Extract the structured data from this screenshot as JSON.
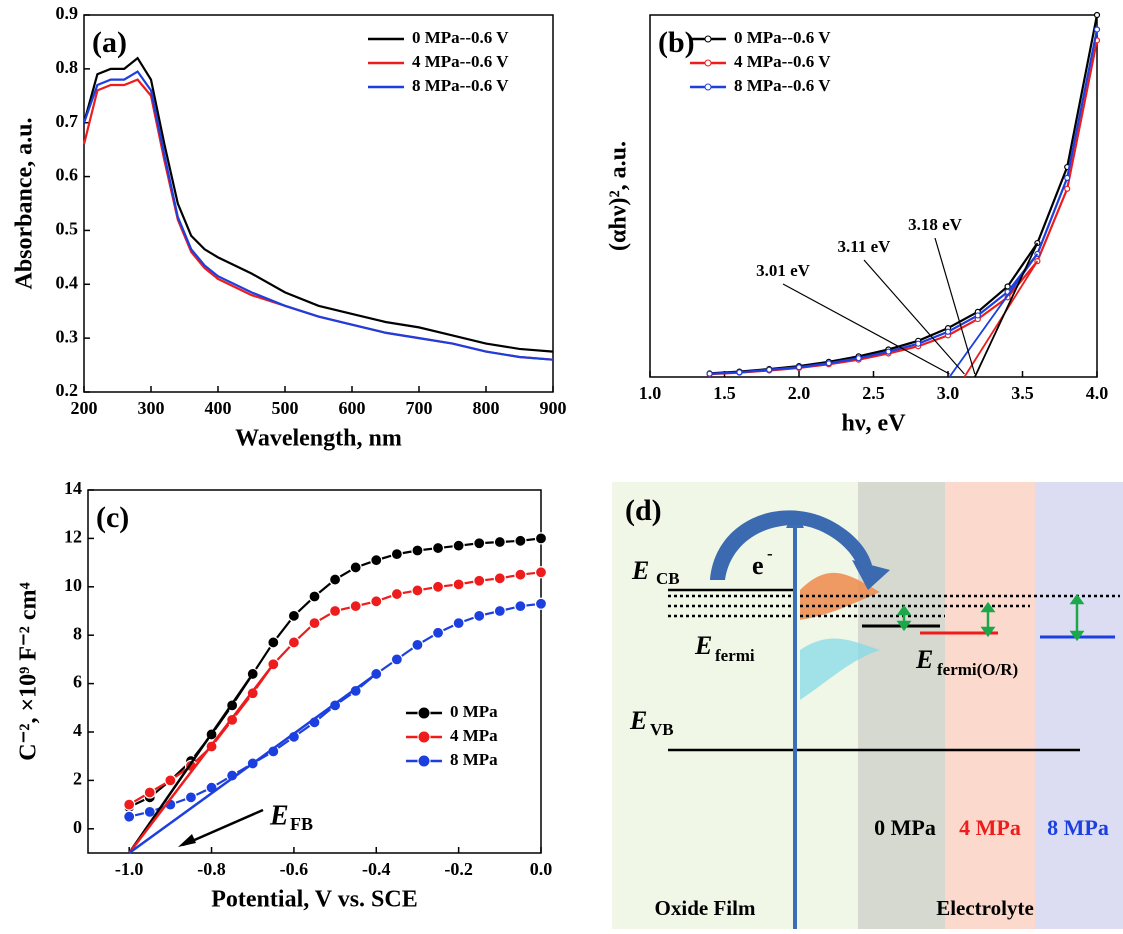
{
  "chart_data": [
    {
      "type": "line",
      "title": "(a)",
      "x_label": "Wavelength, nm",
      "y_label": "Absorbance, a.u.",
      "x": [
        200,
        220,
        240,
        260,
        280,
        300,
        320,
        340,
        360,
        380,
        400,
        450,
        500,
        550,
        600,
        650,
        700,
        750,
        800,
        850,
        900
      ],
      "series": [
        {
          "name": "0 MPa--0.6 V",
          "color": "#000000",
          "values": [
            0.7,
            0.79,
            0.8,
            0.8,
            0.82,
            0.78,
            0.66,
            0.55,
            0.49,
            0.465,
            0.45,
            0.42,
            0.385,
            0.36,
            0.345,
            0.33,
            0.32,
            0.305,
            0.29,
            0.28,
            0.275
          ]
        },
        {
          "name": "4 MPa--0.6 V",
          "color": "#ee1c1c",
          "values": [
            0.66,
            0.76,
            0.77,
            0.77,
            0.78,
            0.75,
            0.63,
            0.52,
            0.46,
            0.43,
            0.41,
            0.38,
            0.36,
            0.34,
            0.325,
            0.31,
            0.3,
            0.29,
            0.275,
            0.265,
            0.26
          ]
        },
        {
          "name": "8 MPa--0.6 V",
          "color": "#1c3fe0",
          "values": [
            0.7,
            0.77,
            0.78,
            0.78,
            0.795,
            0.76,
            0.64,
            0.525,
            0.465,
            0.435,
            0.415,
            0.385,
            0.36,
            0.34,
            0.325,
            0.31,
            0.3,
            0.29,
            0.275,
            0.265,
            0.26
          ]
        }
      ],
      "xlim": [
        200,
        900
      ],
      "xticks": [
        200,
        300,
        400,
        500,
        600,
        700,
        800,
        900
      ],
      "ylim": [
        0.2,
        0.9
      ],
      "yticks": [
        0.2,
        0.3,
        0.4,
        0.5,
        0.6,
        0.7,
        0.8,
        0.9
      ],
      "legend": "upper right",
      "markers": false
    },
    {
      "type": "line",
      "title": "(b)",
      "x_label": "hν, eV",
      "y_label": "(αhν)², a.u.",
      "x": [
        1.4,
        1.6,
        1.8,
        2.0,
        2.2,
        2.4,
        2.6,
        2.8,
        3.0,
        3.2,
        3.4,
        3.6,
        3.8,
        4.0
      ],
      "series": [
        {
          "name": "0 MPa--0.6 V",
          "color": "#000000",
          "values": [
            0.01,
            0.015,
            0.022,
            0.03,
            0.042,
            0.057,
            0.076,
            0.1,
            0.135,
            0.18,
            0.25,
            0.37,
            0.58,
            1.0
          ]
        },
        {
          "name": "4 MPa--0.6 V",
          "color": "#ee1c1c",
          "values": [
            0.008,
            0.012,
            0.018,
            0.025,
            0.035,
            0.048,
            0.065,
            0.085,
            0.115,
            0.16,
            0.22,
            0.32,
            0.52,
            0.93
          ]
        },
        {
          "name": "8 MPa--0.6 V",
          "color": "#1c3fe0",
          "values": [
            0.009,
            0.013,
            0.02,
            0.027,
            0.038,
            0.052,
            0.07,
            0.092,
            0.125,
            0.17,
            0.235,
            0.34,
            0.55,
            0.96
          ]
        }
      ],
      "annotations": [
        {
          "text": "3.01 eV",
          "x": 3.01
        },
        {
          "text": "3.11 eV",
          "x": 3.11
        },
        {
          "text": "3.18 eV",
          "x": 3.18
        }
      ],
      "xlim": [
        1.0,
        4.0
      ],
      "xticks": [
        {
          "value": 1,
          "label": "1.0"
        },
        1.5,
        {
          "value": 2,
          "label": "2.0"
        },
        2.5,
        {
          "value": 3,
          "label": "3.0"
        },
        3.5,
        {
          "value": 4,
          "label": "4.0"
        }
      ],
      "ylim": [
        0,
        1
      ],
      "legend": "upper left",
      "markers": true
    },
    {
      "type": "line",
      "title": "(c)",
      "x_label": "Potential, V vs. SCE",
      "y_label": "C⁻², ×10⁹ F⁻² cm⁴",
      "x": [
        -1.0,
        -0.95,
        -0.9,
        -0.85,
        -0.8,
        -0.75,
        -0.7,
        -0.65,
        -0.6,
        -0.55,
        -0.5,
        -0.45,
        -0.4,
        -0.35,
        -0.3,
        -0.25,
        -0.2,
        -0.15,
        -0.1,
        -0.05,
        0.0
      ],
      "series": [
        {
          "name": "0 MPa",
          "color": "#000000",
          "values": [
            0.9,
            1.3,
            2.0,
            2.8,
            3.9,
            5.1,
            6.4,
            7.7,
            8.8,
            9.6,
            10.3,
            10.8,
            11.1,
            11.35,
            11.5,
            11.6,
            11.7,
            11.8,
            11.85,
            11.9,
            12.0
          ]
        },
        {
          "name": "4 MPa",
          "color": "#ee1c1c",
          "values": [
            1.0,
            1.5,
            2.0,
            2.6,
            3.4,
            4.5,
            5.6,
            6.8,
            7.7,
            8.5,
            9.0,
            9.2,
            9.4,
            9.7,
            9.85,
            10.0,
            10.1,
            10.25,
            10.35,
            10.5,
            10.6
          ]
        },
        {
          "name": "8 MPa",
          "color": "#1c3fe0",
          "values": [
            0.5,
            0.7,
            1.0,
            1.3,
            1.7,
            2.2,
            2.7,
            3.2,
            3.8,
            4.4,
            5.1,
            5.7,
            6.4,
            7.0,
            7.6,
            8.1,
            8.5,
            8.8,
            9.0,
            9.2,
            9.3
          ]
        }
      ],
      "annotation": {
        "text": "E",
        "sub": "FB"
      },
      "xlim": [
        -1.1,
        0.0
      ],
      "xticks": [
        {
          "value": -1,
          "label": "-1.0"
        },
        -0.8,
        -0.6,
        -0.4,
        -0.2,
        {
          "value": 0,
          "label": "0.0"
        }
      ],
      "ylim": [
        -1,
        14
      ],
      "yticks": [
        0,
        2,
        4,
        6,
        8,
        10,
        12,
        14
      ],
      "legend": "lower right",
      "markers": true
    }
  ],
  "diagram": {
    "title": "(d)",
    "cb": {
      "main": "E",
      "sub": "CB"
    },
    "electron": {
      "main": "e",
      "sup": "-"
    },
    "fermi": {
      "main": "E",
      "sub": "fermi"
    },
    "fermi_or": {
      "main": "E",
      "sub": "fermi(O/R)"
    },
    "vb": {
      "main": "E",
      "sub": "VB"
    },
    "pressures": [
      "0 MPa",
      "4 MPa",
      "8 MPa"
    ],
    "regions": [
      "Oxide Film",
      "Electrolyte"
    ]
  }
}
